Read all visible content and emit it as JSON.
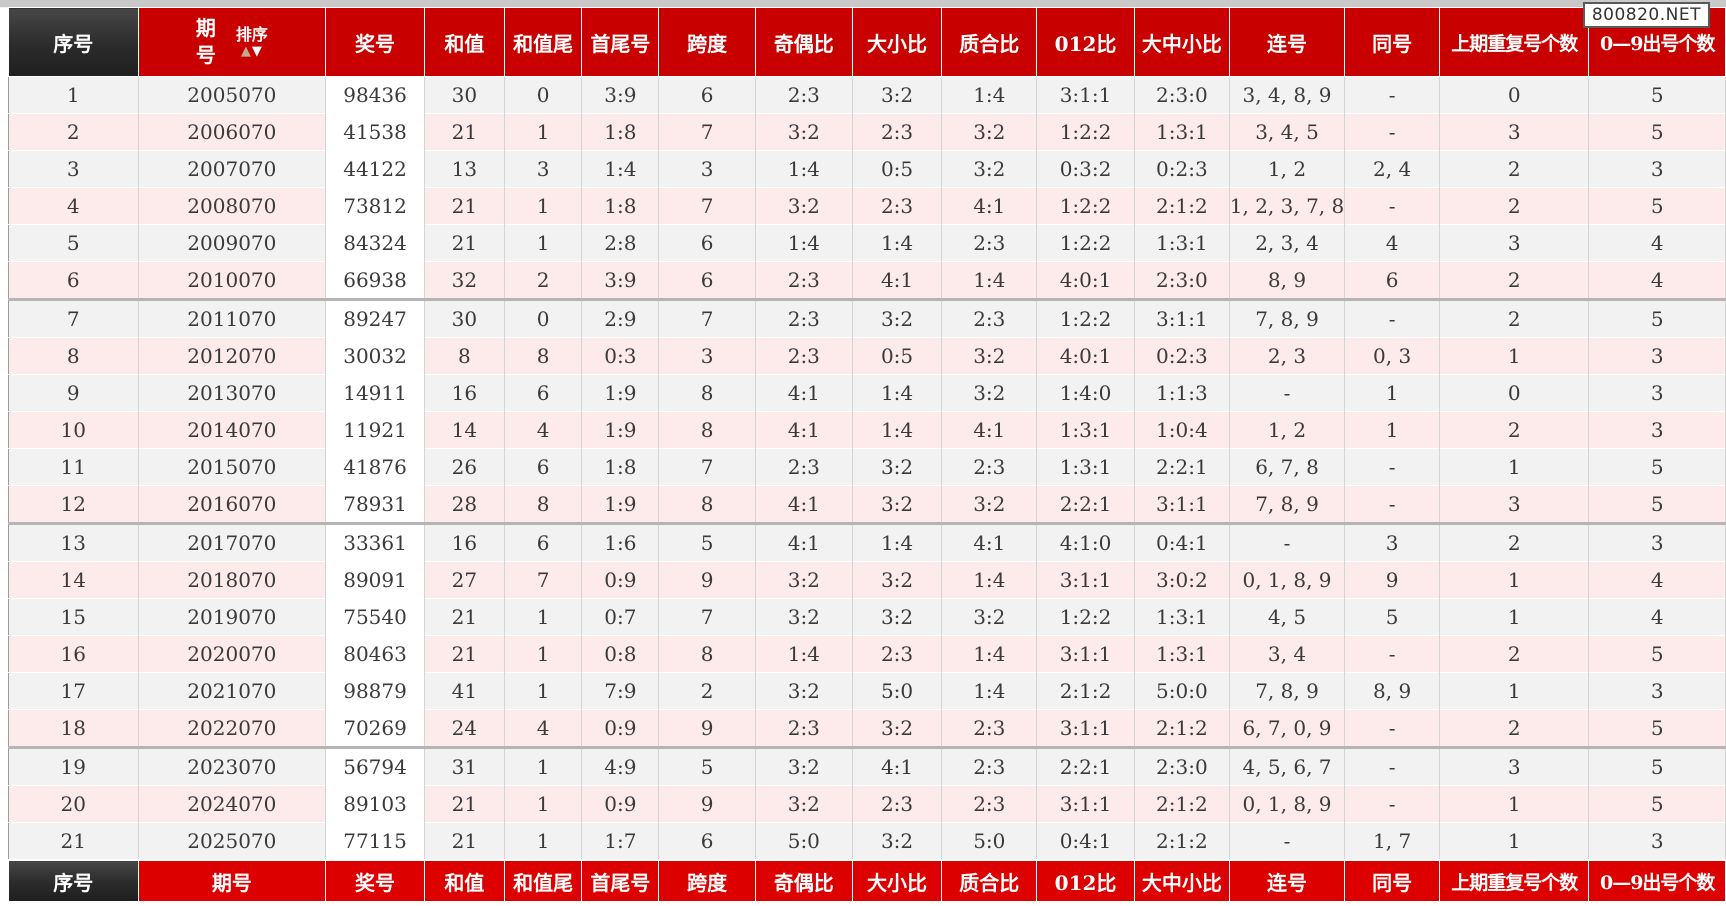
{
  "page": {
    "watermark": "800820.NET"
  },
  "table": {
    "sort": {
      "label": "排序",
      "up_arrow": "▲",
      "down_arrow": "▼"
    },
    "columns": [
      {
        "id": "xuhao",
        "label": "序号"
      },
      {
        "id": "qihao",
        "label": "期号"
      },
      {
        "id": "jianghao",
        "label": "奖号"
      },
      {
        "id": "hezhi",
        "label": "和值"
      },
      {
        "id": "hezhiwei",
        "label": "和值尾"
      },
      {
        "id": "shouweihao",
        "label": "首尾号"
      },
      {
        "id": "kuadu",
        "label": "跨度"
      },
      {
        "id": "jioubi",
        "label": "奇偶比"
      },
      {
        "id": "daxiaobi",
        "label": "大小比"
      },
      {
        "id": "zhihebi",
        "label": "质合比"
      },
      {
        "id": "bi012",
        "label": "012比"
      },
      {
        "id": "dazhongxiaobi",
        "label": "大中小比"
      },
      {
        "id": "lianhao",
        "label": "连号"
      },
      {
        "id": "tonghao",
        "label": "同号"
      },
      {
        "id": "shangqichongfu",
        "label": "上期重复号个数",
        "long": true
      },
      {
        "id": "chuhaogeshu",
        "label": "0—9出号个数",
        "long": true
      }
    ],
    "group_size": 6,
    "rows": [
      [
        "1",
        "2005070",
        "98436",
        "30",
        "0",
        "3:9",
        "6",
        "2:3",
        "3:2",
        "1:4",
        "3:1:1",
        "2:3:0",
        "3, 4, 8, 9",
        "-",
        "0",
        "5"
      ],
      [
        "2",
        "2006070",
        "41538",
        "21",
        "1",
        "1:8",
        "7",
        "3:2",
        "2:3",
        "3:2",
        "1:2:2",
        "1:3:1",
        "3, 4, 5",
        "-",
        "3",
        "5"
      ],
      [
        "3",
        "2007070",
        "44122",
        "13",
        "3",
        "1:4",
        "3",
        "1:4",
        "0:5",
        "3:2",
        "0:3:2",
        "0:2:3",
        "1, 2",
        "2, 4",
        "2",
        "3"
      ],
      [
        "4",
        "2008070",
        "73812",
        "21",
        "1",
        "1:8",
        "7",
        "3:2",
        "2:3",
        "4:1",
        "1:2:2",
        "2:1:2",
        "1, 2, 3, 7, 8",
        "-",
        "2",
        "5"
      ],
      [
        "5",
        "2009070",
        "84324",
        "21",
        "1",
        "2:8",
        "6",
        "1:4",
        "1:4",
        "2:3",
        "1:2:2",
        "1:3:1",
        "2, 3, 4",
        "4",
        "3",
        "4"
      ],
      [
        "6",
        "2010070",
        "66938",
        "32",
        "2",
        "3:9",
        "6",
        "2:3",
        "4:1",
        "1:4",
        "4:0:1",
        "2:3:0",
        "8, 9",
        "6",
        "2",
        "4"
      ],
      [
        "7",
        "2011070",
        "89247",
        "30",
        "0",
        "2:9",
        "7",
        "2:3",
        "3:2",
        "2:3",
        "1:2:2",
        "3:1:1",
        "7, 8, 9",
        "-",
        "2",
        "5"
      ],
      [
        "8",
        "2012070",
        "30032",
        "8",
        "8",
        "0:3",
        "3",
        "2:3",
        "0:5",
        "3:2",
        "4:0:1",
        "0:2:3",
        "2, 3",
        "0, 3",
        "1",
        "3"
      ],
      [
        "9",
        "2013070",
        "14911",
        "16",
        "6",
        "1:9",
        "8",
        "4:1",
        "1:4",
        "3:2",
        "1:4:0",
        "1:1:3",
        "-",
        "1",
        "0",
        "3"
      ],
      [
        "10",
        "2014070",
        "11921",
        "14",
        "4",
        "1:9",
        "8",
        "4:1",
        "1:4",
        "4:1",
        "1:3:1",
        "1:0:4",
        "1, 2",
        "1",
        "2",
        "3"
      ],
      [
        "11",
        "2015070",
        "41876",
        "26",
        "6",
        "1:8",
        "7",
        "2:3",
        "3:2",
        "2:3",
        "1:3:1",
        "2:2:1",
        "6, 7, 8",
        "-",
        "1",
        "5"
      ],
      [
        "12",
        "2016070",
        "78931",
        "28",
        "8",
        "1:9",
        "8",
        "4:1",
        "3:2",
        "3:2",
        "2:2:1",
        "3:1:1",
        "7, 8, 9",
        "-",
        "3",
        "5"
      ],
      [
        "13",
        "2017070",
        "33361",
        "16",
        "6",
        "1:6",
        "5",
        "4:1",
        "1:4",
        "4:1",
        "4:1:0",
        "0:4:1",
        "-",
        "3",
        "2",
        "3"
      ],
      [
        "14",
        "2018070",
        "89091",
        "27",
        "7",
        "0:9",
        "9",
        "3:2",
        "3:2",
        "1:4",
        "3:1:1",
        "3:0:2",
        "0, 1, 8, 9",
        "9",
        "1",
        "4"
      ],
      [
        "15",
        "2019070",
        "75540",
        "21",
        "1",
        "0:7",
        "7",
        "3:2",
        "3:2",
        "3:2",
        "1:2:2",
        "1:3:1",
        "4, 5",
        "5",
        "1",
        "4"
      ],
      [
        "16",
        "2020070",
        "80463",
        "21",
        "1",
        "0:8",
        "8",
        "1:4",
        "2:3",
        "1:4",
        "3:1:1",
        "1:3:1",
        "3, 4",
        "-",
        "2",
        "5"
      ],
      [
        "17",
        "2021070",
        "98879",
        "41",
        "1",
        "7:9",
        "2",
        "3:2",
        "5:0",
        "1:4",
        "2:1:2",
        "5:0:0",
        "7, 8, 9",
        "8, 9",
        "1",
        "3"
      ],
      [
        "18",
        "2022070",
        "70269",
        "24",
        "4",
        "0:9",
        "9",
        "2:3",
        "3:2",
        "2:3",
        "3:1:1",
        "2:1:2",
        "6, 7, 0, 9",
        "-",
        "2",
        "5"
      ],
      [
        "19",
        "2023070",
        "56794",
        "31",
        "1",
        "4:9",
        "5",
        "3:2",
        "4:1",
        "2:3",
        "2:2:1",
        "2:3:0",
        "4, 5, 6, 7",
        "-",
        "3",
        "5"
      ],
      [
        "20",
        "2024070",
        "89103",
        "21",
        "1",
        "0:9",
        "9",
        "3:2",
        "2:3",
        "2:3",
        "3:1:1",
        "2:1:2",
        "0, 1, 8, 9",
        "-",
        "1",
        "5"
      ],
      [
        "21",
        "2025070",
        "77115",
        "21",
        "1",
        "1:7",
        "6",
        "5:0",
        "3:2",
        "5:0",
        "0:4:1",
        "2:1:2",
        "-",
        "1, 7",
        "1",
        "3"
      ]
    ]
  }
}
